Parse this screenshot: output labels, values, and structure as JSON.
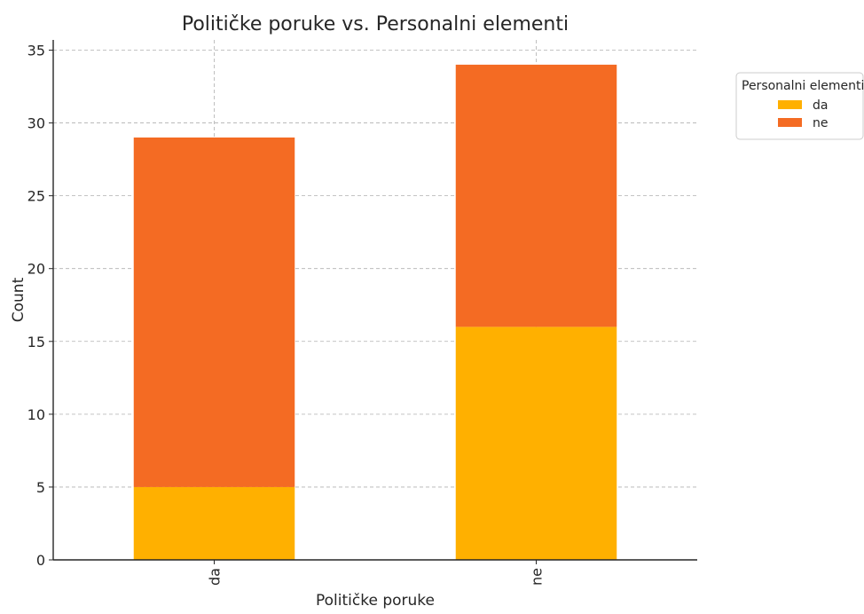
{
  "chart_data": {
    "type": "bar",
    "stacked": true,
    "title": "Političke poruke vs. Personalni elementi",
    "xlabel": "Političke poruke",
    "ylabel": "Count",
    "categories": [
      "da",
      "ne"
    ],
    "series": [
      {
        "name": "da",
        "values": [
          5,
          16
        ],
        "color": "#FFB000"
      },
      {
        "name": "ne",
        "values": [
          24,
          18
        ],
        "color": "#F46B23"
      }
    ],
    "ylim": [
      0,
      35.7
    ],
    "yticks": [
      0,
      5,
      10,
      15,
      20,
      25,
      30,
      35
    ],
    "grid": true,
    "legend": {
      "title": "Personalni elementi",
      "placement": "outside top-right"
    }
  }
}
